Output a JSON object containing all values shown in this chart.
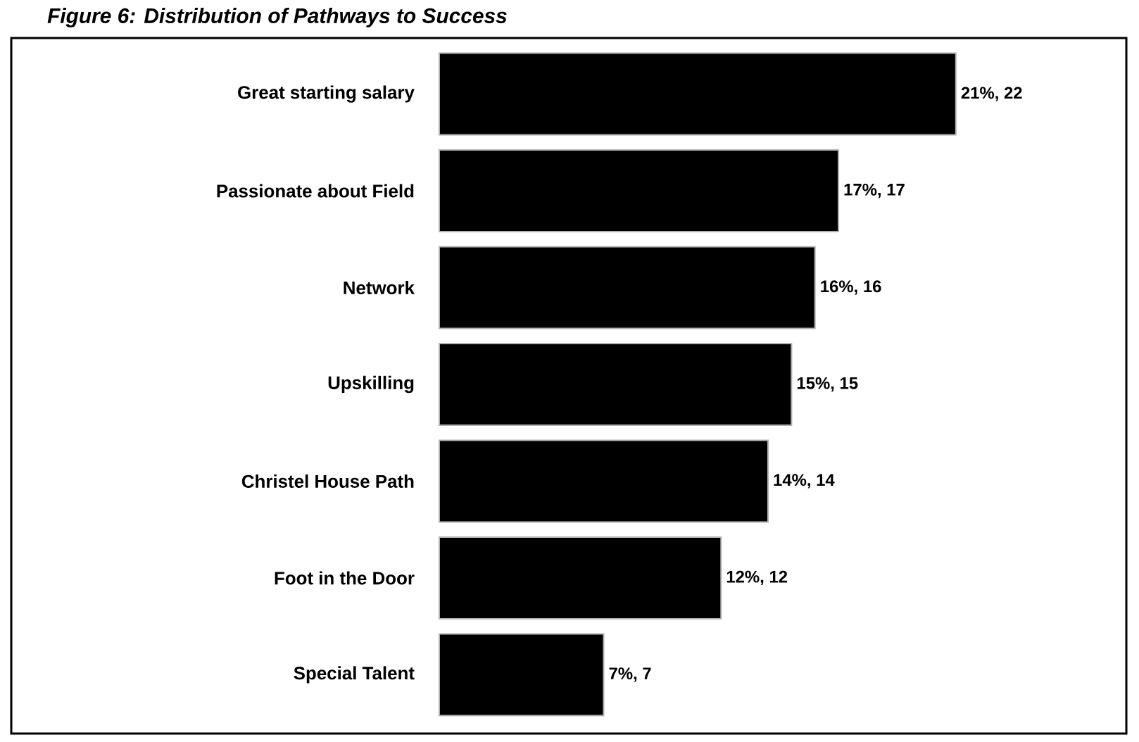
{
  "chart_data": {
    "type": "bar",
    "orientation": "horizontal",
    "title": "Figure 6: Distribution of Pathways to Success",
    "categories": [
      "Great starting salary",
      "Passionate about Field",
      "Network",
      "Upskilling",
      "Christel House Path",
      "Foot in the Door",
      "Special Talent"
    ],
    "values": [
      22,
      17,
      16,
      15,
      14,
      12,
      7
    ],
    "value_labels": [
      "21%, 22",
      "17%, 17",
      "16%, 16",
      "15%, 15",
      "14%, 14",
      "12%, 12",
      "7%, 7"
    ],
    "color": "#000000"
  }
}
